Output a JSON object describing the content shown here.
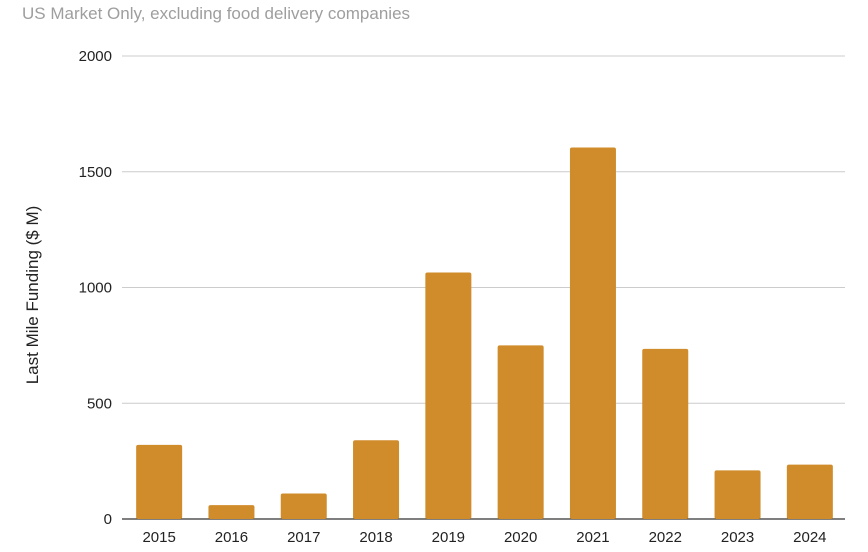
{
  "chart_data": {
    "type": "bar",
    "subtitle": "US Market Only, excluding food delivery companies",
    "ylabel": "Last Mile Funding ($ M)",
    "xlabel": "",
    "categories": [
      "2015",
      "2016",
      "2017",
      "2018",
      "2019",
      "2020",
      "2021",
      "2022",
      "2023",
      "2024"
    ],
    "values": [
      320,
      60,
      110,
      340,
      1065,
      750,
      1605,
      735,
      210,
      235
    ],
    "ylim": [
      0,
      2000
    ],
    "yticks": [
      "0",
      "500",
      "1000",
      "1500",
      "2000"
    ],
    "grid": true,
    "legend": "none",
    "bar_color": "#d08c2a"
  }
}
